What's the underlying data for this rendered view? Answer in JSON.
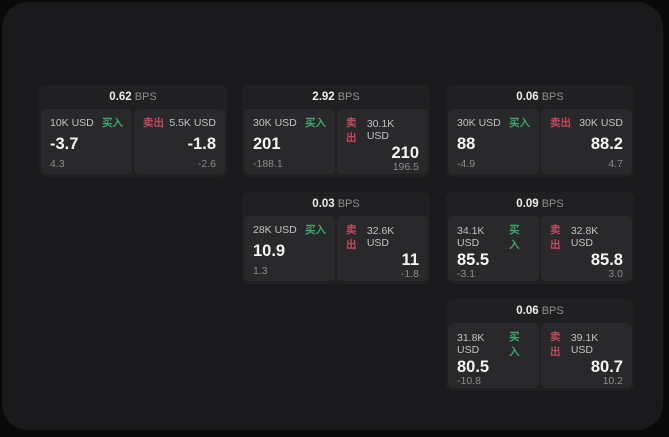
{
  "labels": {
    "bps_unit": "BPS",
    "buy": "买入",
    "sell": "卖出"
  },
  "colors": {
    "buy": "#3ea56b",
    "sell": "#c14a5e",
    "window_bg": "#1a1a1c",
    "card_bg": "#202022",
    "tile_bg": "#29292b"
  },
  "cards": [
    {
      "bps": "0.62",
      "buy": {
        "size": "10K USD",
        "price": "-3.7",
        "delta": "4.3"
      },
      "sell": {
        "size": "5.5K USD",
        "price": "-1.8",
        "delta": "-2.6"
      }
    },
    {
      "bps": "2.92",
      "buy": {
        "size": "30K USD",
        "price": "201",
        "delta": "-188.1"
      },
      "sell": {
        "size": "30.1K USD",
        "price": "210",
        "delta": "196.5"
      }
    },
    {
      "bps": "0.06",
      "buy": {
        "size": "30K USD",
        "price": "88",
        "delta": "-4.9"
      },
      "sell": {
        "size": "30K USD",
        "price": "88.2",
        "delta": "4.7"
      }
    },
    {
      "bps": "0.03",
      "buy": {
        "size": "28K USD",
        "price": "10.9",
        "delta": "1.3"
      },
      "sell": {
        "size": "32.6K USD",
        "price": "11",
        "delta": "-1.8"
      }
    },
    {
      "bps": "0.09",
      "buy": {
        "size": "34.1K USD",
        "price": "85.5",
        "delta": "-3.1"
      },
      "sell": {
        "size": "32.8K USD",
        "price": "85.8",
        "delta": "3.0"
      }
    },
    {
      "bps": "0.06",
      "buy": {
        "size": "31.8K USD",
        "price": "80.5",
        "delta": "-10.8"
      },
      "sell": {
        "size": "39.1K USD",
        "price": "80.7",
        "delta": "10.2"
      }
    }
  ]
}
